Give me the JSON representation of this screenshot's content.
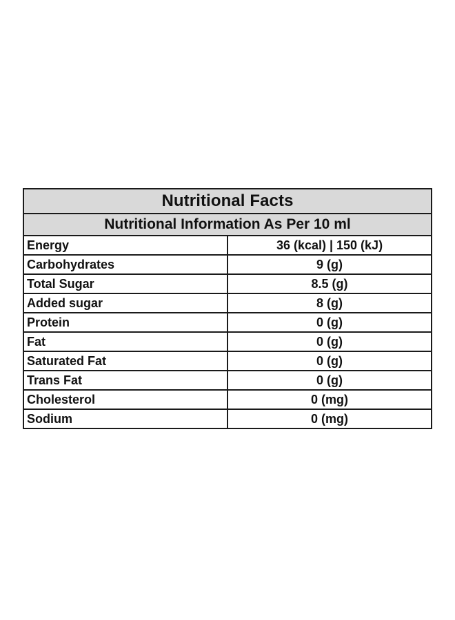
{
  "table": {
    "title": "Nutritional Facts",
    "subtitle": "Nutritional Information As Per 10 ml",
    "rows": [
      {
        "label": "Energy",
        "value": "36 (kcal) | 150 (kJ)"
      },
      {
        "label": "Carbohydrates",
        "value": "9 (g)"
      },
      {
        "label": "Total Sugar",
        "value": "8.5 (g)"
      },
      {
        "label": "Added sugar",
        "value": "8 (g)"
      },
      {
        "label": "Protein",
        "value": "0 (g)"
      },
      {
        "label": "Fat",
        "value": "0 (g)"
      },
      {
        "label": "Saturated Fat",
        "value": "0 (g)"
      },
      {
        "label": "Trans Fat",
        "value": "0 (g)"
      },
      {
        "label": "Cholesterol",
        "value": "0 (mg)"
      },
      {
        "label": "Sodium",
        "value": "0 (mg)"
      }
    ]
  },
  "colors": {
    "header_background": "#d9d9d9",
    "border": "#1a1a1a",
    "text": "#111111"
  }
}
